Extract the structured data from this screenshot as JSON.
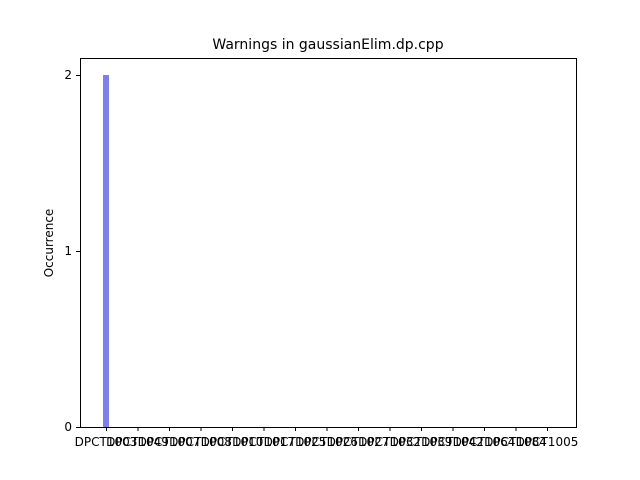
{
  "chart_data": {
    "type": "bar",
    "title": "Warnings in gaussianElim.dp.cpp",
    "xlabel": "",
    "ylabel": "Occurrence",
    "ylim": [
      0,
      2
    ],
    "yticks": [
      0,
      1,
      2
    ],
    "grid": false,
    "bar_color": "#7f7fea",
    "categories": [
      "DPCT1003",
      "DPCT1049",
      "DPCT1007",
      "DPCT1008",
      "DPCT1010",
      "DPCT1017",
      "DPCT1025",
      "DPCT1026",
      "DPCT1027",
      "DPCT1032",
      "DPCT1039",
      "DPCT1042",
      "DPCT1064",
      "DPCT1084",
      "DPCT1005"
    ],
    "values": [
      2,
      0,
      0,
      0,
      0,
      0,
      0,
      0,
      0,
      0,
      0,
      0,
      0,
      0,
      0
    ]
  }
}
